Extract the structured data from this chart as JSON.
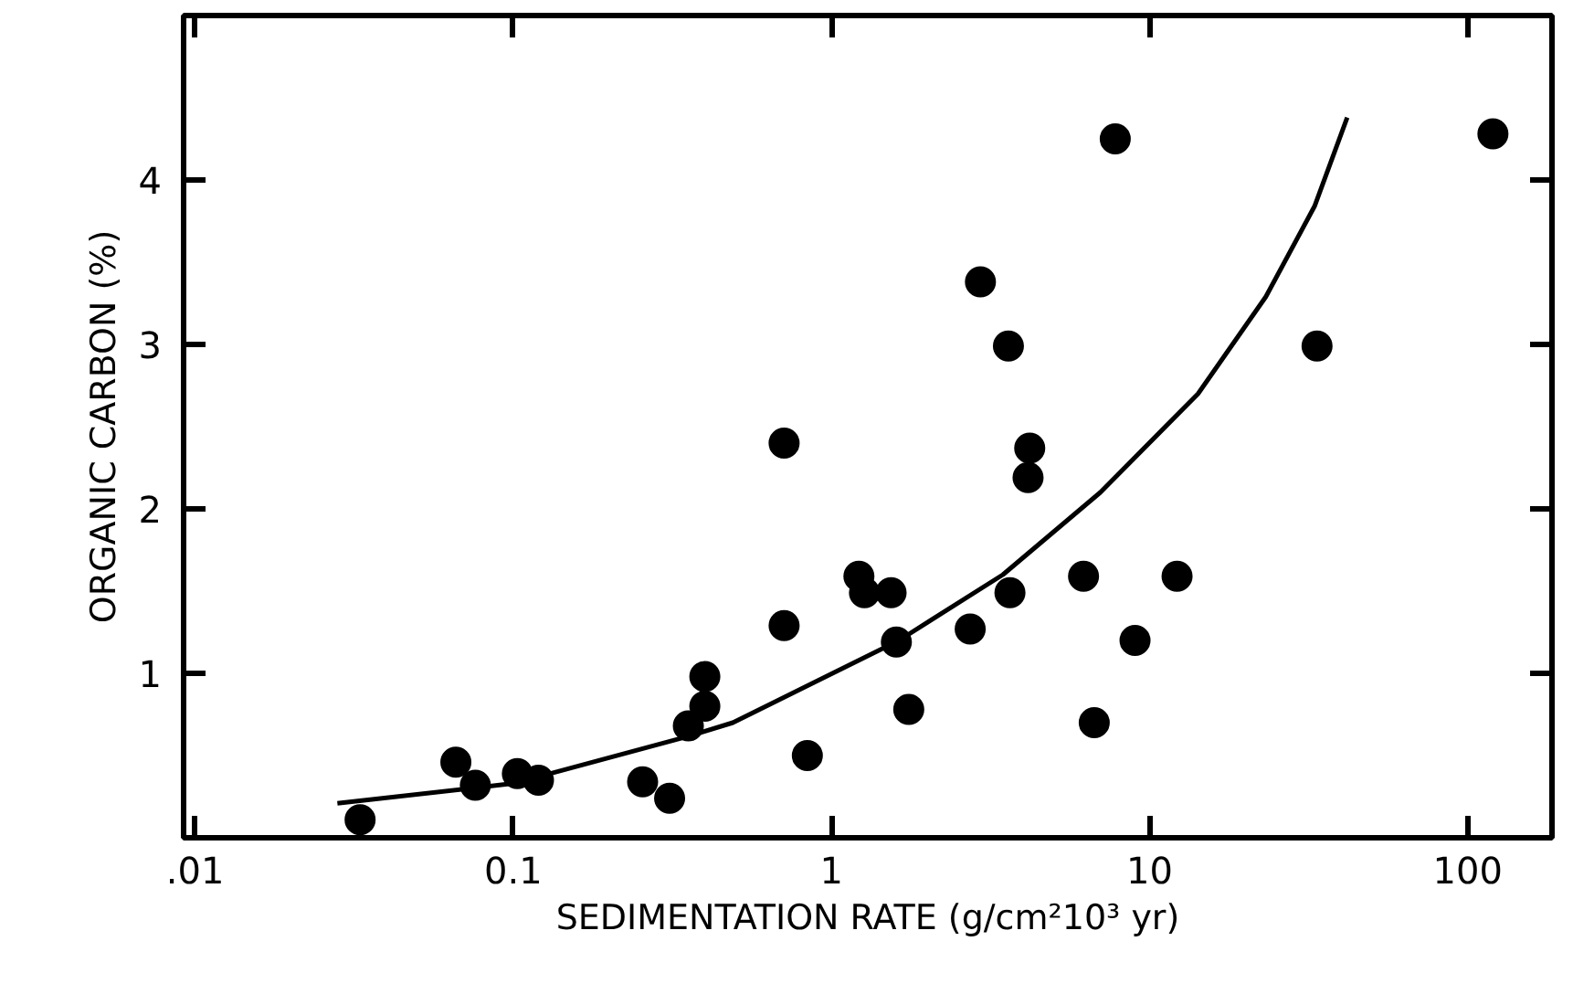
{
  "chart_data": {
    "type": "scatter",
    "xlabel": "SEDIMENTATION RATE (g/cm²10³ yr)",
    "ylabel": "ORGANIC CARBON (%)",
    "log": "x",
    "grid": false,
    "marker": "circle",
    "xlim": [
      0.0092,
      184
    ],
    "ylim": [
      0,
      5
    ],
    "xticks": [
      {
        "value": 0.01,
        "label": ".01"
      },
      0.1,
      1,
      10,
      100
    ],
    "yticks": [
      1,
      2,
      3,
      4
    ],
    "series": [
      {
        "color": "#000000",
        "x": [
          7.8,
          120,
          2.94,
          3.6,
          33.6,
          0.71,
          4.2,
          4.15,
          6.2,
          12.2,
          1.22,
          1.27,
          1.54,
          3.64,
          0.71,
          2.73,
          9.0,
          1.6,
          1.75,
          6.7,
          0.84,
          0.033,
          0.066,
          0.076,
          0.103,
          0.12,
          0.255,
          0.31,
          0.355,
          0.4,
          0.4
        ],
        "values": [
          4.25,
          4.28,
          3.38,
          2.99,
          2.99,
          2.4,
          2.37,
          2.19,
          1.59,
          1.59,
          1.59,
          1.49,
          1.49,
          1.49,
          1.29,
          1.27,
          1.2,
          1.19,
          0.78,
          0.7,
          0.5,
          0.11,
          0.46,
          0.32,
          0.39,
          0.35,
          0.34,
          0.24,
          0.68,
          0.8,
          0.98
        ]
      },
      {
        "type": "line",
        "color": "#000000",
        "marker": "none",
        "line_style": "solid",
        "x": [
          0.028,
          0.1,
          0.36,
          0.49,
          1.63,
          3.46,
          7.0,
          14.2,
          23.2,
          33,
          41.8
        ],
        "values": [
          0.21,
          0.33,
          0.62,
          0.7,
          1.2,
          1.6,
          2.1,
          2.7,
          3.29,
          3.84,
          4.38
        ]
      }
    ]
  }
}
